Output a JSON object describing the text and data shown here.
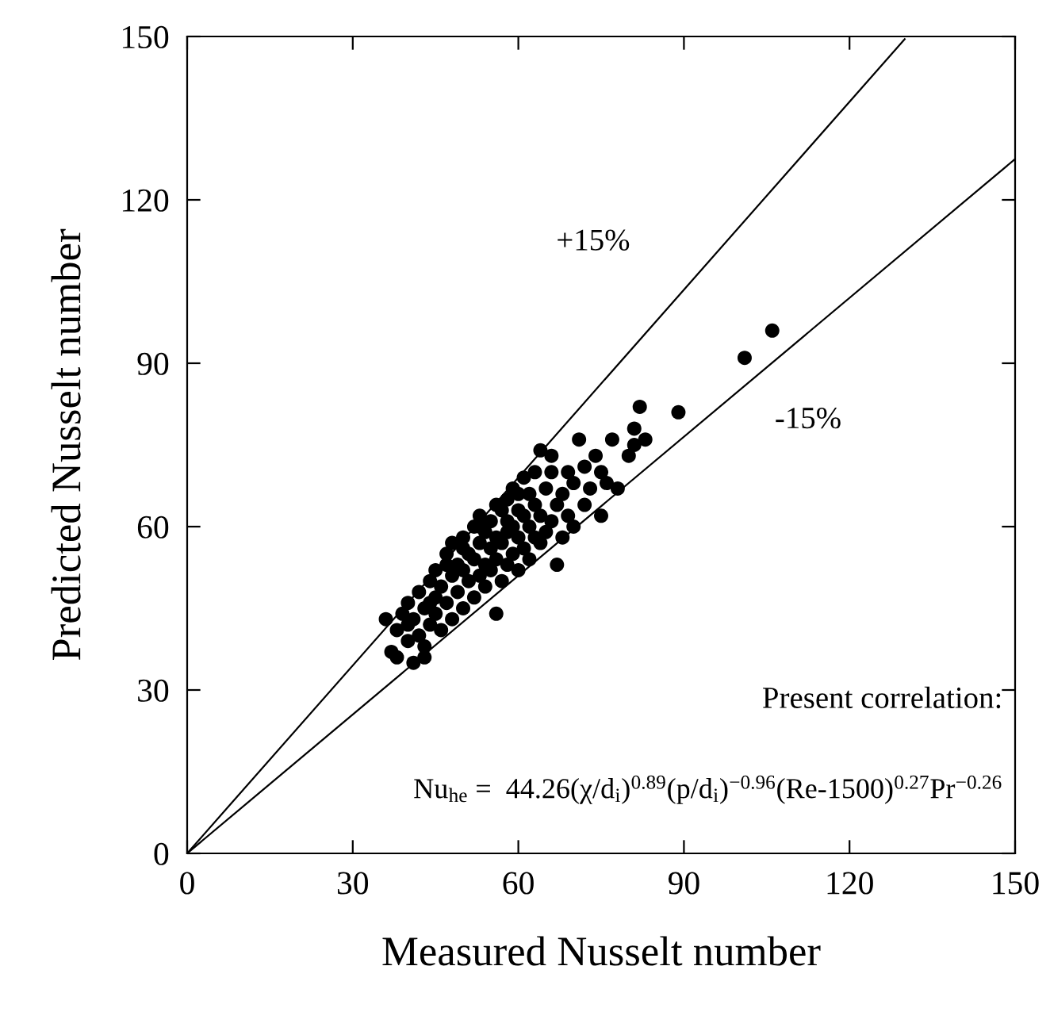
{
  "chart_data": {
    "type": "scatter",
    "xlabel": "Measured Nusselt number",
    "ylabel": "Predicted Nusselt number",
    "xlim": [
      0,
      150
    ],
    "ylim": [
      0,
      150
    ],
    "xticks": [
      0,
      30,
      60,
      90,
      120,
      150
    ],
    "yticks": [
      0,
      30,
      60,
      90,
      120,
      150
    ],
    "grid": false,
    "legend": false,
    "marker": "circle",
    "series": [
      {
        "color": "#000000",
        "x": [
          36,
          37,
          38,
          38,
          39,
          40,
          40,
          41,
          41,
          42,
          42,
          43,
          43,
          44,
          44,
          45,
          45,
          45,
          46,
          46,
          47,
          47,
          48,
          48,
          48,
          49,
          49,
          50,
          50,
          50,
          51,
          51,
          52,
          52,
          52,
          53,
          53,
          53,
          54,
          54,
          54,
          55,
          55,
          55,
          56,
          56,
          56,
          57,
          57,
          57,
          58,
          58,
          58,
          59,
          59,
          59,
          60,
          60,
          60,
          61,
          61,
          61,
          62,
          62,
          62,
          63,
          63,
          64,
          64,
          64,
          65,
          65,
          66,
          66,
          67,
          67,
          68,
          68,
          69,
          70,
          70,
          71,
          72,
          72,
          73,
          74,
          75,
          75,
          76,
          77,
          78,
          80,
          81,
          81,
          82,
          83,
          89,
          101,
          106,
          44,
          47,
          50,
          53,
          56,
          58,
          60,
          63,
          66,
          69,
          40,
          43
        ],
        "values": [
          43,
          37,
          41,
          36,
          44,
          39,
          46,
          35,
          43,
          40,
          48,
          45,
          38,
          42,
          50,
          44,
          47,
          52,
          41,
          49,
          46,
          55,
          43,
          51,
          57,
          48,
          53,
          45,
          52,
          58,
          50,
          55,
          47,
          54,
          60,
          51,
          57,
          62,
          49,
          53,
          59,
          52,
          56,
          61,
          44,
          54,
          58,
          50,
          57,
          63,
          53,
          59,
          65,
          55,
          60,
          67,
          52,
          58,
          63,
          56,
          62,
          69,
          54,
          60,
          66,
          58,
          64,
          57,
          62,
          74,
          59,
          67,
          61,
          70,
          53,
          64,
          58,
          66,
          62,
          60,
          68,
          76,
          64,
          71,
          67,
          73,
          62,
          70,
          68,
          76,
          67,
          73,
          78,
          75,
          82,
          76,
          81,
          91,
          96,
          46,
          53,
          56,
          60,
          64,
          61,
          66,
          70,
          73,
          70,
          42,
          36
        ]
      },
      {
        "type": "line",
        "marker": "none",
        "name": "+15%",
        "color": "#000000",
        "x": [
          0,
          130
        ],
        "values": [
          0,
          149.5
        ]
      },
      {
        "type": "line",
        "marker": "none",
        "name": "-15%",
        "color": "#000000",
        "x": [
          0,
          150
        ],
        "values": [
          0,
          127.5
        ]
      }
    ],
    "annotations": [
      "Present correlation:",
      "Nu$_{he}$ =  44.26(χ/d$_{i}$)$^{0.89}$(p/d$_{i}$)$^{−0.96}$(Re-1500)$^{0.27}$Pr$^{−0.26}$"
    ]
  }
}
